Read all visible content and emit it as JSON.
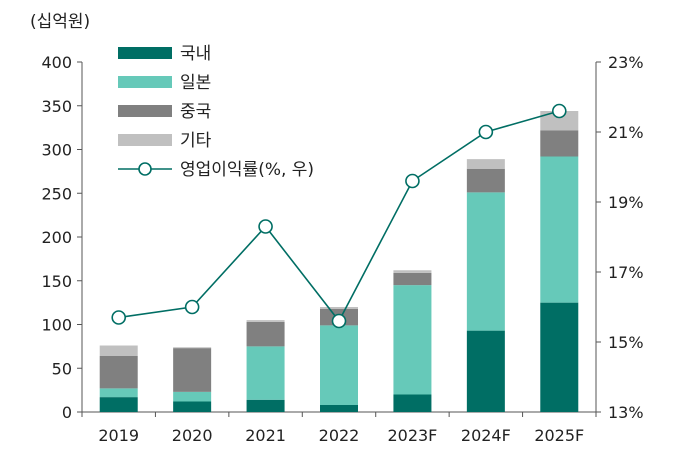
{
  "chart_data": {
    "type": "bar",
    "stacked": true,
    "unit_label": "(십억원)",
    "categories": [
      "2019",
      "2020",
      "2021",
      "2022",
      "2023F",
      "2024F",
      "2025F"
    ],
    "series": [
      {
        "name": "국내",
        "values": [
          17,
          12,
          14,
          8,
          20,
          93,
          125
        ],
        "color": "#006e64"
      },
      {
        "name": "일본",
        "values": [
          10,
          11,
          61,
          91,
          125,
          158,
          167
        ],
        "color": "#66c9b9"
      },
      {
        "name": "중국",
        "values": [
          37,
          50,
          28,
          19,
          14,
          27,
          30
        ],
        "color": "#808080"
      },
      {
        "name": "기타",
        "values": [
          12,
          1,
          2,
          2,
          3,
          11,
          22
        ],
        "color": "#c0c0c0"
      }
    ],
    "line_series": {
      "name": "영업이익률(%, 우)",
      "values": [
        15.7,
        16.0,
        18.3,
        15.6,
        19.6,
        21.0,
        21.6
      ],
      "color": "#006e64"
    },
    "y_left": {
      "min": 0,
      "max": 400,
      "ticks": [
        0,
        50,
        100,
        150,
        200,
        250,
        300,
        350,
        400
      ]
    },
    "y_right": {
      "min": 13,
      "max": 23,
      "ticks": [
        "13%",
        "15%",
        "17%",
        "19%",
        "21%",
        "23%"
      ]
    },
    "legend": [
      "국내",
      "일본",
      "중국",
      "기타",
      "영업이익률(%, 우)"
    ],
    "legend_position": "top-left"
  }
}
